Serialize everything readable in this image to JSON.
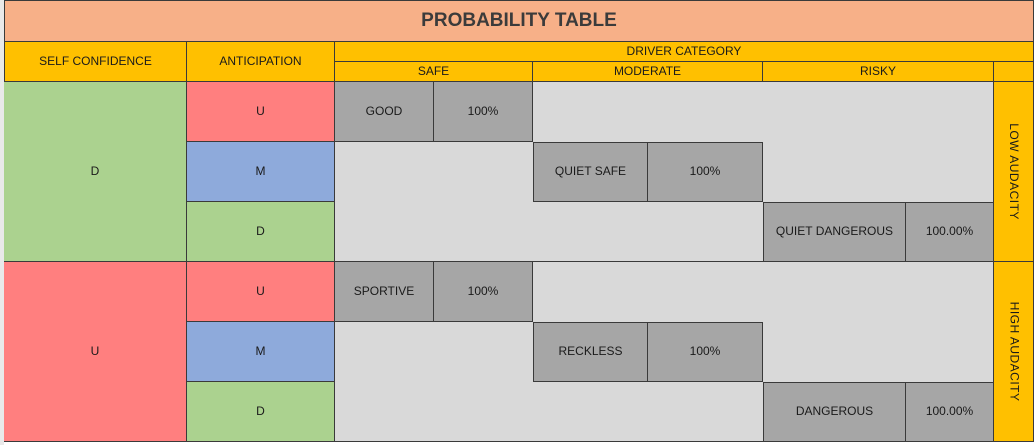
{
  "title": "PROBABILITY TABLE",
  "headers": {
    "self_confidence": "SELF CONFIDENCE",
    "anticipation": "ANTICIPATION",
    "driver_category": "DRIVER CATEGORY",
    "safe": "SAFE",
    "moderate": "MODERATE",
    "risky": "RISKY"
  },
  "groups": [
    {
      "self_confidence": "D",
      "audacity": "LOW AUDACITY",
      "rows": [
        {
          "anticipation": "U",
          "category": "GOOD",
          "probability": "100%"
        },
        {
          "anticipation": "M",
          "category": "QUIET SAFE",
          "probability": "100%"
        },
        {
          "anticipation": "D",
          "category": "QUIET DANGEROUS",
          "probability": "100.00%"
        }
      ]
    },
    {
      "self_confidence": "U",
      "audacity": "HIGH AUDACITY",
      "rows": [
        {
          "anticipation": "U",
          "category": "SPORTIVE",
          "probability": "100%"
        },
        {
          "anticipation": "M",
          "category": "RECKLESS",
          "probability": "100%"
        },
        {
          "anticipation": "D",
          "category": "DANGEROUS",
          "probability": "100.00%"
        }
      ]
    }
  ],
  "colors": {
    "title_bg": "#f7b088",
    "header_bg": "#ffc000",
    "d_green": "#abd28f",
    "u_red": "#ff7f7f",
    "m_blue": "#8eaadb",
    "category_gray": "#a6a6a6",
    "empty_gray": "#d9d9d9"
  }
}
